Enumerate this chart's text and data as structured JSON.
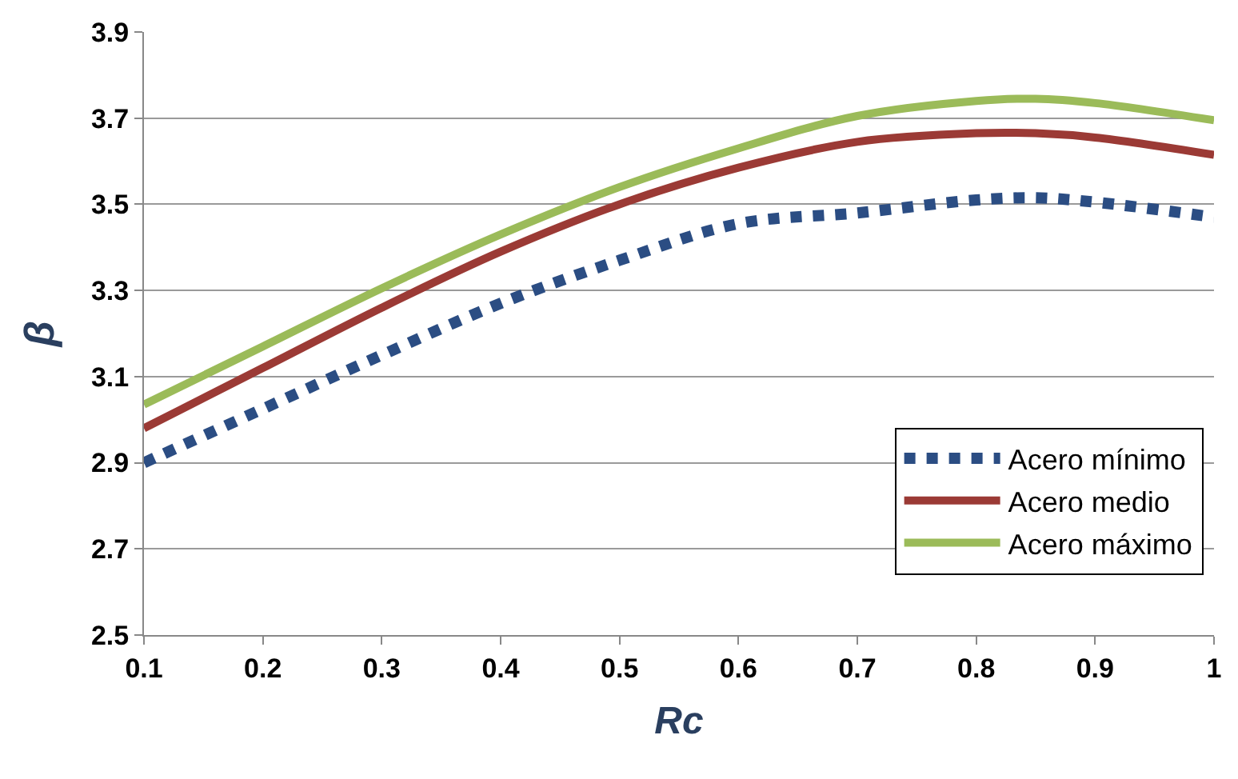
{
  "chart_data": {
    "type": "line",
    "xlabel": "Rc",
    "ylabel": "β",
    "x": [
      0.1,
      0.2,
      0.3,
      0.4,
      0.5,
      0.6,
      0.7,
      0.8,
      0.85,
      0.9,
      1.0
    ],
    "series": [
      {
        "name": "Acero mínimo",
        "color": "#2b4d83",
        "line_style": "dotted",
        "values": [
          2.9,
          3.025,
          3.15,
          3.27,
          3.37,
          3.455,
          3.48,
          3.51,
          3.515,
          3.505,
          3.47
        ]
      },
      {
        "name": "Acero medio",
        "color": "#9b3a35",
        "line_style": "solid",
        "values": [
          2.98,
          3.12,
          3.26,
          3.39,
          3.5,
          3.585,
          3.645,
          3.665,
          3.665,
          3.655,
          3.615
        ]
      },
      {
        "name": "Acero máximo",
        "color": "#9bbb59",
        "line_style": "solid",
        "values": [
          3.035,
          3.17,
          3.305,
          3.43,
          3.54,
          3.63,
          3.705,
          3.74,
          3.745,
          3.735,
          3.695
        ]
      }
    ],
    "xlim": [
      0.1,
      1.0
    ],
    "xticks": [
      0.1,
      0.2,
      0.3,
      0.4,
      0.5,
      0.6,
      0.7,
      0.8,
      0.9,
      {
        "value": 1.0,
        "label": "1"
      }
    ],
    "ylim": [
      2.5,
      3.9
    ],
    "yticks": [
      2.5,
      2.7,
      2.9,
      3.1,
      3.3,
      3.5,
      3.7,
      3.9
    ],
    "grid": "y",
    "legend": "bottom right",
    "marker": "none"
  }
}
